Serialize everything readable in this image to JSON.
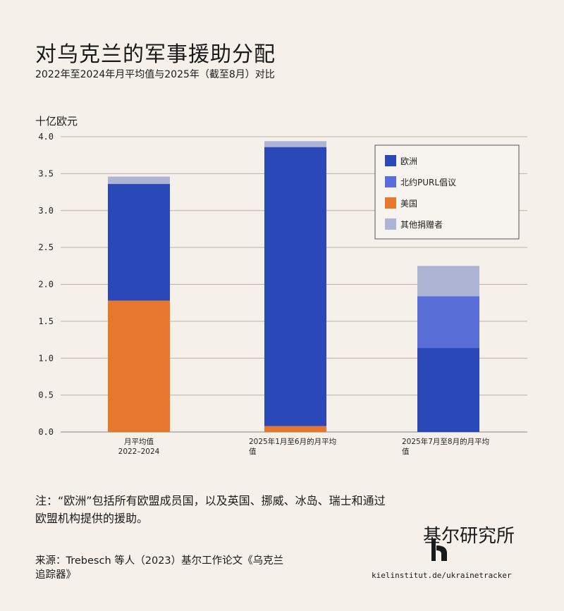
{
  "header": {
    "title": "对乌克兰的军事援助分配",
    "subtitle": "2022年至2024年月平均值与2025年（截至8月）对比"
  },
  "chart_data": {
    "type": "bar",
    "stacked": true,
    "ylabel": "十亿欧元",
    "ylim": [
      0,
      4.0
    ],
    "yticks": [
      "0.0",
      "0.5",
      "1.0",
      "1.5",
      "2.0",
      "2.5",
      "3.0",
      "3.5",
      "4.0"
    ],
    "grid": true,
    "legend_position": "top-right",
    "categories": [
      [
        "月平均值",
        "2022–2024"
      ],
      [
        "2025年1月至6月的月平均",
        "值"
      ],
      [
        "2025年7月至8月的月平均",
        "值"
      ]
    ],
    "series": [
      {
        "name": "美国",
        "color": "#e8772e",
        "values": [
          1.78,
          0.08,
          0.0
        ]
      },
      {
        "name": "欧洲",
        "color": "#2b48b8",
        "values": [
          1.58,
          3.78,
          1.14
        ]
      },
      {
        "name": "北约PURL倡议",
        "color": "#5a6ed8",
        "values": [
          0.0,
          0.0,
          0.7
        ]
      },
      {
        "name": "其他捐赠者",
        "color": "#aeb5d4",
        "values": [
          0.1,
          0.08,
          0.41
        ]
      }
    ],
    "legend_order": [
      "欧洲",
      "北约PURL倡议",
      "美国",
      "其他捐赠者"
    ]
  },
  "footer": {
    "note": "注：“欧洲”包括所有欧盟成员国，以及英国、挪威、冰岛、瑞士和通过欧盟机构提供的援助。",
    "source": "来源：Trebesch 等人（2023）基尔工作论文《乌克兰追踪器》",
    "org_name": "基尔研究所",
    "url": "kielinstitut.de/ukrainetracker"
  }
}
